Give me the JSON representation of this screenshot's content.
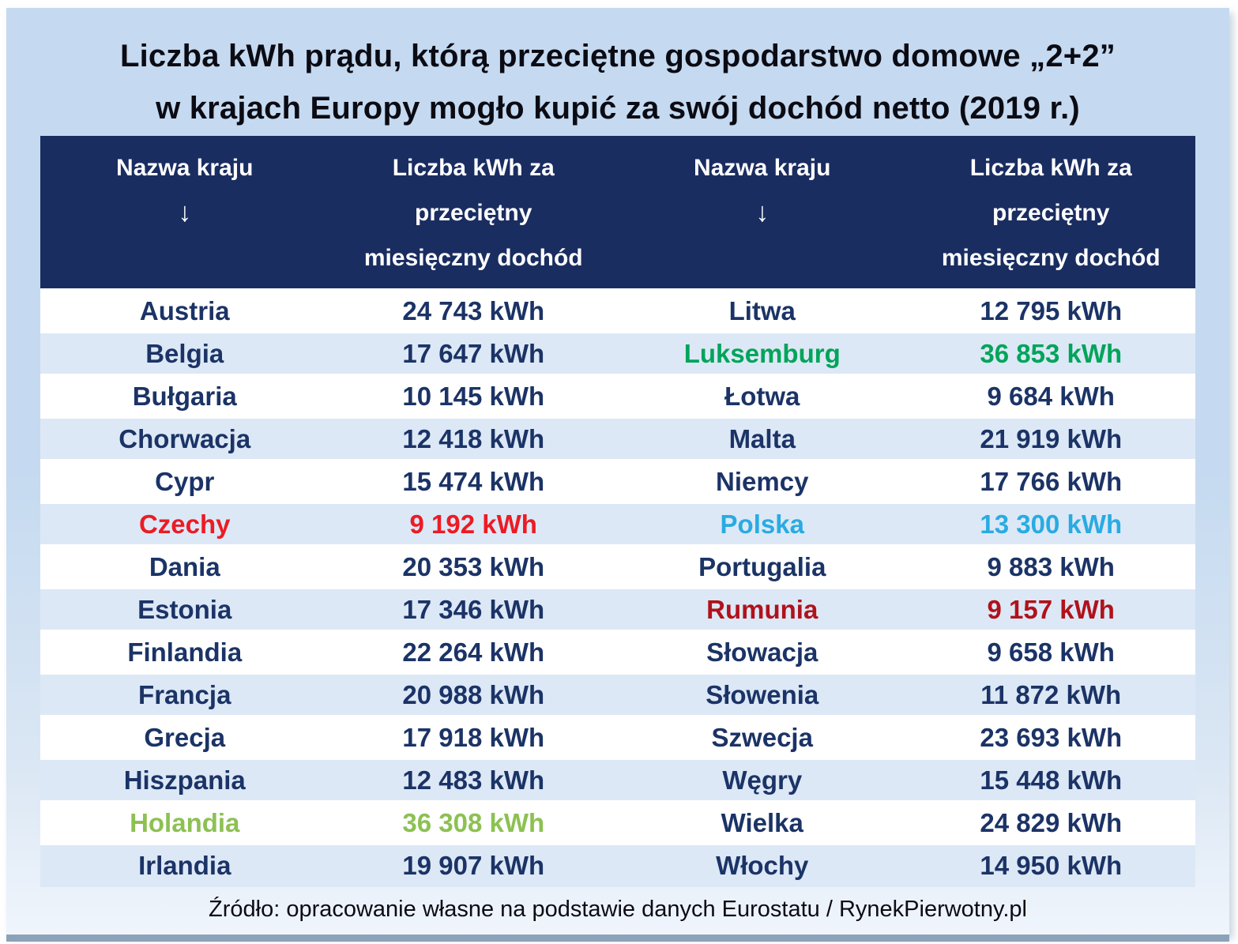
{
  "title": {
    "line1": "Liczba kWh prądu, którą przeciętne gospodarstwo domowe „2+2”",
    "line2": "w krajach Europy mogło kupić za swój dochód netto (2019 r.)"
  },
  "header": {
    "country_label": "Nazwa kraju",
    "sort_arrow": "↓",
    "value_lines": [
      "Liczba kWh za",
      "przeciętny",
      "miesięczny dochód"
    ]
  },
  "rows": [
    {
      "lc": "Austria",
      "lv": "24 743 kWh",
      "rc": "Litwa",
      "rv": "12 795 kWh"
    },
    {
      "lc": "Belgia",
      "lv": "17 647 kWh",
      "rc": "Luksemburg",
      "rv": "36 853 kWh"
    },
    {
      "lc": "Bułgaria",
      "lv": "10 145 kWh",
      "rc": "Łotwa",
      "rv": "9 684 kWh"
    },
    {
      "lc": "Chorwacja",
      "lv": "12 418 kWh",
      "rc": "Malta",
      "rv": "21 919 kWh"
    },
    {
      "lc": "Cypr",
      "lv": "15 474 kWh",
      "rc": "Niemcy",
      "rv": "17 766 kWh"
    },
    {
      "lc": "Czechy",
      "lv": "9 192 kWh",
      "rc": "Polska",
      "rv": "13 300 kWh"
    },
    {
      "lc": "Dania",
      "lv": "20 353 kWh",
      "rc": "Portugalia",
      "rv": "9 883 kWh"
    },
    {
      "lc": "Estonia",
      "lv": "17 346 kWh",
      "rc": "Rumunia",
      "rv": "9 157 kWh"
    },
    {
      "lc": "Finlandia",
      "lv": "22 264 kWh",
      "rc": "Słowacja",
      "rv": "9 658 kWh"
    },
    {
      "lc": "Francja",
      "lv": "20 988 kWh",
      "rc": "Słowenia",
      "rv": "11 872 kWh"
    },
    {
      "lc": "Grecja",
      "lv": "17 918 kWh",
      "rc": "Szwecja",
      "rv": "23 693 kWh"
    },
    {
      "lc": "Hiszpania",
      "lv": "12 483 kWh",
      "rc": "Węgry",
      "rv": "15 448 kWh"
    },
    {
      "lc": "Holandia",
      "lv": "36 308 kWh",
      "rc": "Wielka",
      "rv": "24 829 kWh"
    },
    {
      "lc": "Irlandia",
      "lv": "19 907 kWh",
      "rc": "Włochy",
      "rv": "14 950 kWh"
    }
  ],
  "footer": {
    "source": "Źródło: opracowanie własne na podstawie danych Eurostatu / RynekPierwotny.pl"
  },
  "colors": {
    "card_top": "#c5daf0",
    "card_bottom": "#f0f5fc",
    "header_bg": "#1a2d61",
    "header_text": "#ffffff",
    "body_text": "#1b3366",
    "title_text": "#0b0b14",
    "footer_text": "#0b0b14",
    "row_alt": "#dce8f6",
    "shadow": "#8ca2b9",
    "red": "#ec1b24",
    "dark_red": "#b0121b",
    "green_light": "#8cc152",
    "green": "#00a45a",
    "cyan": "#29abe2"
  },
  "chart_data": {
    "type": "table",
    "title": "Liczba kWh prądu, którą przeciętne gospodarstwo domowe „2+2” w krajach Europy mogło kupić za swój dochód netto (2019 r.)",
    "columns": [
      "Nazwa kraju",
      "Liczba kWh za przeciętny miesięczny dochód"
    ],
    "unit": "kWh",
    "year": "2019",
    "data": [
      {
        "country": "Austria",
        "kwh": 24743
      },
      {
        "country": "Belgia",
        "kwh": 17647
      },
      {
        "country": "Bułgaria",
        "kwh": 10145
      },
      {
        "country": "Chorwacja",
        "kwh": 12418
      },
      {
        "country": "Cypr",
        "kwh": 15474
      },
      {
        "country": "Czechy",
        "kwh": 9192,
        "highlight": "red"
      },
      {
        "country": "Dania",
        "kwh": 20353
      },
      {
        "country": "Estonia",
        "kwh": 17346
      },
      {
        "country": "Finlandia",
        "kwh": 22264
      },
      {
        "country": "Francja",
        "kwh": 20988
      },
      {
        "country": "Grecja",
        "kwh": 17918
      },
      {
        "country": "Hiszpania",
        "kwh": 12483
      },
      {
        "country": "Holandia",
        "kwh": 36308,
        "highlight": "light-green"
      },
      {
        "country": "Irlandia",
        "kwh": 19907
      },
      {
        "country": "Litwa",
        "kwh": 12795
      },
      {
        "country": "Luksemburg",
        "kwh": 36853,
        "highlight": "green"
      },
      {
        "country": "Łotwa",
        "kwh": 9684
      },
      {
        "country": "Malta",
        "kwh": 21919
      },
      {
        "country": "Niemcy",
        "kwh": 17766
      },
      {
        "country": "Polska",
        "kwh": 13300,
        "highlight": "cyan"
      },
      {
        "country": "Portugalia",
        "kwh": 9883
      },
      {
        "country": "Rumunia",
        "kwh": 9157,
        "highlight": "dark-red"
      },
      {
        "country": "Słowacja",
        "kwh": 9658
      },
      {
        "country": "Słowenia",
        "kwh": 11872
      },
      {
        "country": "Szwecja",
        "kwh": 23693
      },
      {
        "country": "Węgry",
        "kwh": 15448
      },
      {
        "country": "Wielka",
        "kwh": 24829
      },
      {
        "country": "Włochy",
        "kwh": 14950
      }
    ]
  }
}
